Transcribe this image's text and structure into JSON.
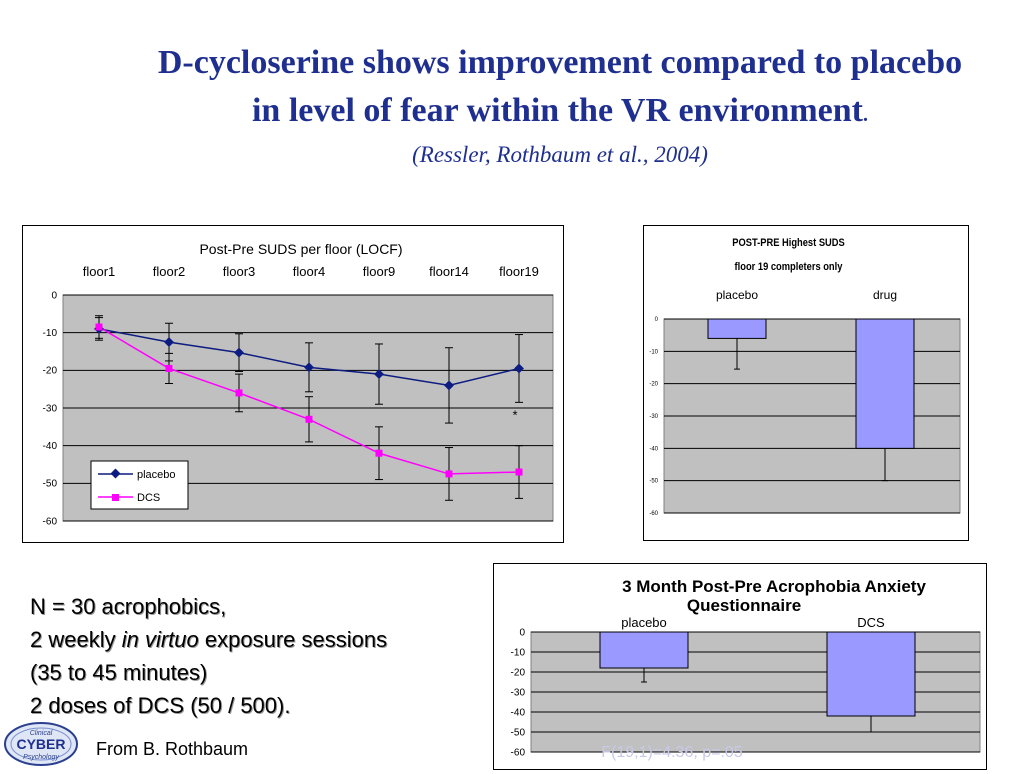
{
  "slide": {
    "title_line1": "D-cycloserine shows improvement compared to placebo",
    "title_line2": "in level of fear within the VR environment",
    "title_period": ".",
    "citation": "(Ressler, Rothbaum et al., 2004)",
    "bullets": {
      "line1": "N = 30 acrophobics,",
      "line2_a": "2 weekly ",
      "line2_b": "in virtuo",
      "line2_c": " exposure sessions",
      "line3": "(35 to 45 minutes)",
      "line4": "2 doses of DCS (50 / 500)."
    },
    "credit": "From B. Rothbaum",
    "logo_text": {
      "top": "Clinical",
      "main": "CYBER",
      "bottom": "Psychology"
    },
    "stat_note": "F(19,1)=4.36, p=.05"
  },
  "colors": {
    "title": "#1f2f8f",
    "placebo": "#0d1c80",
    "dcs": "#ff00ff",
    "plot_bg": "#c0c0c0",
    "bar_fill": "#9999ff"
  },
  "chart_data": [
    {
      "type": "line",
      "title": "Post-Pre SUDS per floor (LOCF)",
      "categories": [
        "floor1",
        "floor2",
        "floor3",
        "floor4",
        "floor9",
        "floor14",
        "floor19"
      ],
      "series": [
        {
          "name": "placebo",
          "values": [
            -9,
            -12.5,
            -15.3,
            -19.2,
            -21,
            -24,
            -19.5
          ],
          "err": [
            3,
            5,
            5,
            6.5,
            8,
            10,
            9
          ]
        },
        {
          "name": "DCS",
          "values": [
            -8.5,
            -19.5,
            -26,
            -33,
            -42,
            -47.5,
            -47
          ],
          "err": [
            3,
            4,
            5,
            6,
            7,
            7,
            7
          ]
        }
      ],
      "annotation": "*",
      "ylim": [
        -60,
        0
      ],
      "yticks": [
        0,
        -10,
        -20,
        -30,
        -40,
        -50,
        -60
      ],
      "grid": true,
      "legend_position": "bottom-left"
    },
    {
      "type": "bar",
      "title_line1": "POST-PRE Highest SUDS",
      "title_line2": "floor 19 completers only",
      "categories": [
        "placebo",
        "drug"
      ],
      "values": [
        -6,
        -40
      ],
      "err": [
        9.5,
        10
      ],
      "ylim": [
        -60,
        0
      ],
      "yticks": [
        0,
        -10,
        -20,
        -30,
        -40,
        -50,
        -60
      ],
      "grid": true
    },
    {
      "type": "bar",
      "title_line1": "3 Month Post-Pre Acrophobia Anxiety",
      "title_line2": "Questionnaire",
      "categories": [
        "placebo",
        "DCS"
      ],
      "values": [
        -18,
        -42
      ],
      "err": [
        7,
        8
      ],
      "ylim": [
        -60,
        0
      ],
      "yticks": [
        0,
        -10,
        -20,
        -30,
        -40,
        -50,
        -60
      ],
      "grid": true
    }
  ]
}
